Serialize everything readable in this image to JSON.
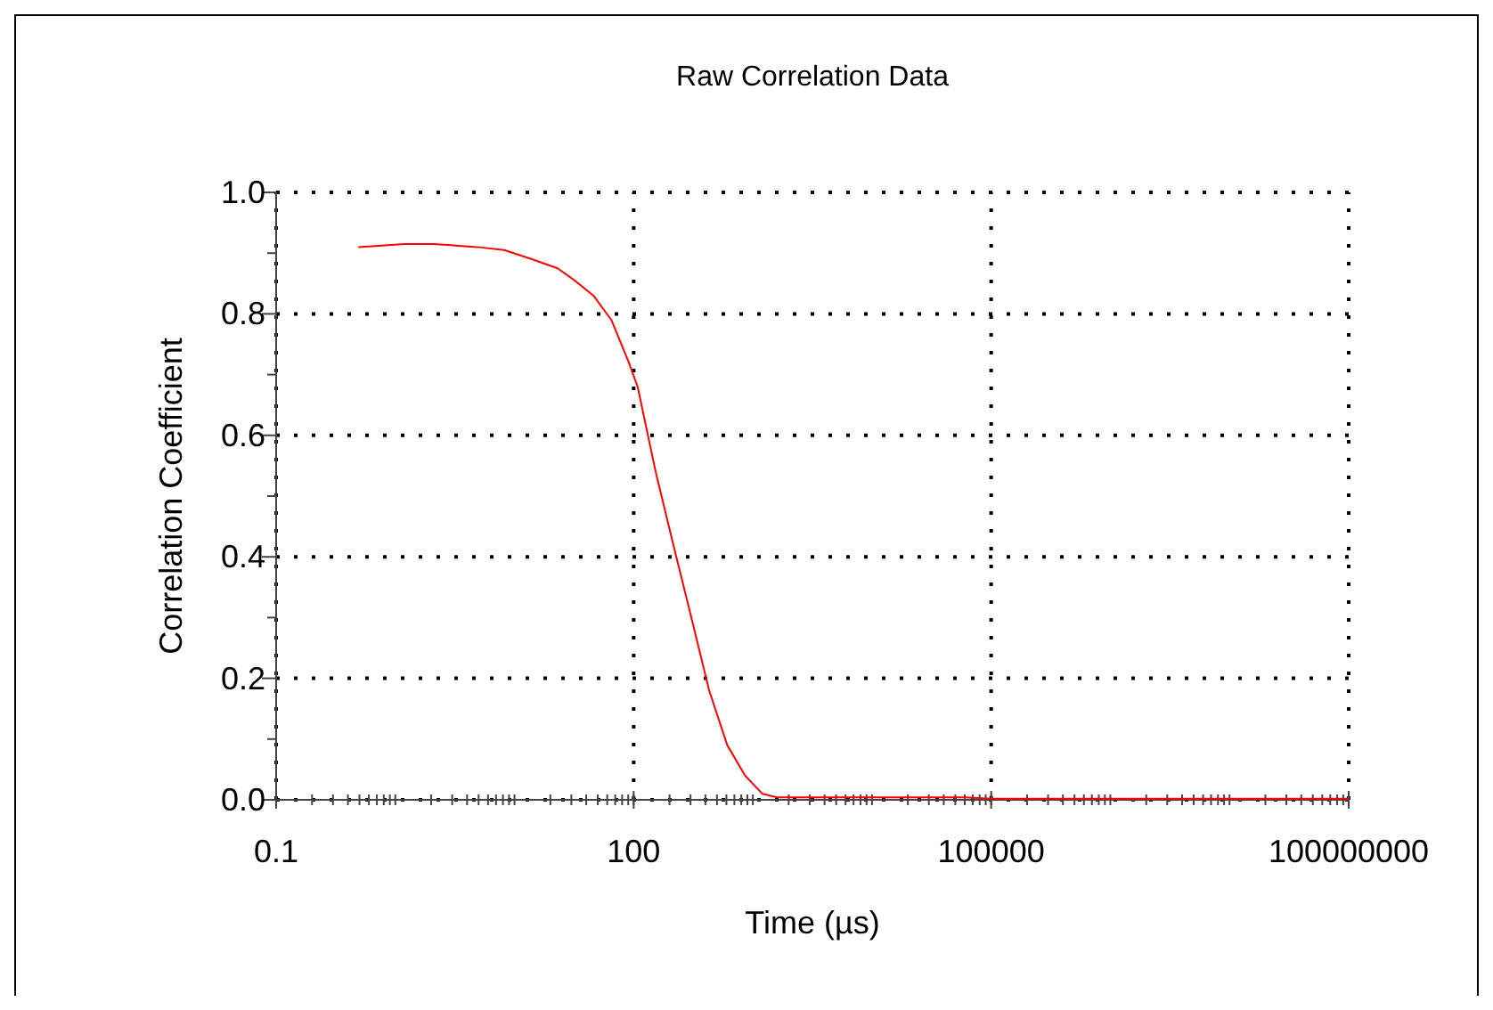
{
  "chart_data": {
    "type": "line",
    "title": "Raw Correlation Data",
    "xlabel": "Time (µs)",
    "ylabel": "Correlation Coefficient",
    "log": "x",
    "grid": true,
    "line_style": "solid",
    "xlim": [
      0.1,
      100000000
    ],
    "xticks": [
      0.1,
      100,
      100000,
      100000000
    ],
    "ylim": [
      0,
      1
    ],
    "yticks": [
      {
        "value": 0,
        "label": "0.0"
      },
      {
        "value": 0.2,
        "label": "0.2"
      },
      {
        "value": 0.4,
        "label": "0.4"
      },
      {
        "value": 0.6,
        "label": "0.6"
      },
      {
        "value": 0.8,
        "label": "0.8"
      },
      {
        "value": 1,
        "label": "1.0"
      }
    ],
    "series": [
      {
        "color": "#ff0000",
        "x": [
          0.49,
          1.2,
          2.1,
          4.9,
          8.2,
          14,
          23,
          32,
          46,
          65,
          91,
          108,
          153,
          215,
          305,
          430,
          610,
          860,
          1200,
          1600,
          5000,
          20000,
          60000,
          100000,
          1000000,
          10000000,
          100000000
        ],
        "values": [
          0.91,
          0.915,
          0.915,
          0.91,
          0.905,
          0.89,
          0.875,
          0.855,
          0.83,
          0.79,
          0.72,
          0.68,
          0.54,
          0.42,
          0.3,
          0.18,
          0.09,
          0.04,
          0.01,
          0.004,
          0.004,
          0.004,
          0.004,
          0.002,
          0.002,
          0.002,
          0.002
        ]
      }
    ]
  }
}
